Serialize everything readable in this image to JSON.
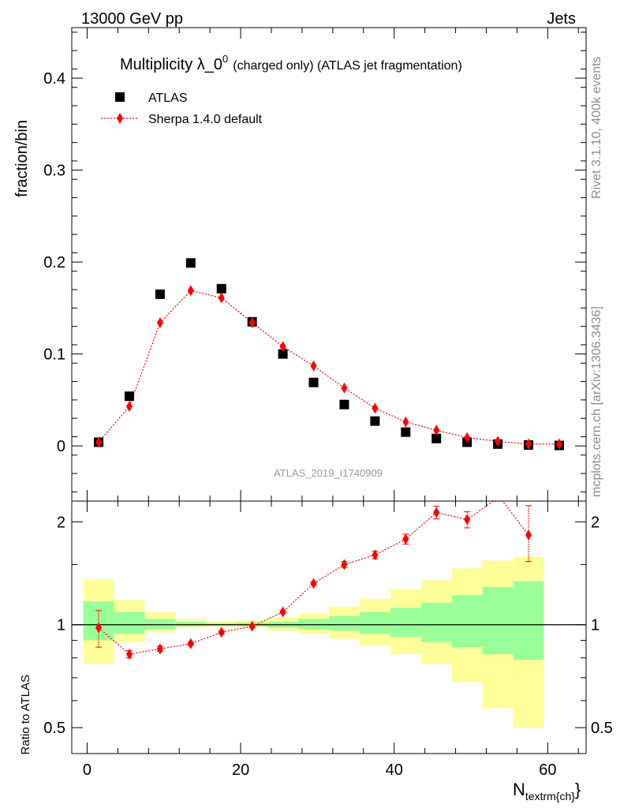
{
  "header": {
    "energy_label": "13000 GeV pp",
    "category_label": "Jets"
  },
  "side_text": {
    "rivet": "Rivet 3.1.10,  400k events",
    "mcplots": "mcplots.cern.ch [arXiv:1306.3436]"
  },
  "watermark": "ATLAS_2019_I1740909",
  "chart_data": [
    {
      "type": "scatter",
      "title": "Multiplicity λ_0",
      "title_sup": "0",
      "title_suffix": "(charged only) (ATLAS jet fragmentation)",
      "ylabel": "fraction/bin",
      "xlim": [
        -2,
        65
      ],
      "ylim": [
        -0.06,
        0.455
      ],
      "yticks": [
        0,
        0.1,
        0.2,
        0.3,
        0.4
      ],
      "ytick_labels": [
        "0",
        "0.1",
        "0.2",
        "0.3",
        "0.4"
      ],
      "legend": [
        "ATLAS",
        "Sherpa 1.4.0 default"
      ],
      "legend_position": "top-left",
      "series": [
        {
          "name": "ATLAS",
          "color": "#000000",
          "marker": "square",
          "x": [
            1.5,
            5.5,
            9.5,
            13.5,
            17.5,
            21.5,
            25.5,
            29.5,
            33.5,
            37.5,
            41.5,
            45.5,
            49.5,
            53.5,
            57.5,
            61.5
          ],
          "y": [
            0.004,
            0.054,
            0.165,
            0.199,
            0.171,
            0.135,
            0.1,
            0.069,
            0.045,
            0.027,
            0.015,
            0.008,
            0.004,
            0.002,
            0.001,
            0.0005
          ]
        },
        {
          "name": "Sherpa 1.4.0 default",
          "color": "#ff0000",
          "marker": "diamond",
          "x": [
            1.5,
            5.5,
            9.5,
            13.5,
            17.5,
            21.5,
            25.5,
            29.5,
            33.5,
            37.5,
            41.5,
            45.5,
            49.5,
            53.5,
            57.5,
            61.5
          ],
          "y": [
            0.004,
            0.043,
            0.134,
            0.169,
            0.161,
            0.134,
            0.108,
            0.087,
            0.063,
            0.041,
            0.026,
            0.017,
            0.009,
            0.005,
            0.002,
            0.002
          ]
        }
      ]
    },
    {
      "type": "scatter",
      "ylabel": "Ratio to ATLAS",
      "xlabel": "N",
      "xlabel_sub": "textrm{ch}",
      "xlim": [
        -2,
        65
      ],
      "ylim": [
        0.42,
        2.3
      ],
      "log_y": true,
      "xticks": [
        0,
        20,
        40,
        60
      ],
      "xtick_labels": [
        "0",
        "20",
        "40",
        "60"
      ],
      "yticks": [
        0.5,
        1,
        2
      ],
      "ytick_labels": [
        "0.5",
        "1",
        "2"
      ],
      "bands": {
        "x_edges": [
          -0.5,
          3.5,
          7.5,
          11.5,
          15.5,
          19.5,
          23.5,
          27.5,
          31.5,
          35.5,
          39.5,
          43.5,
          47.5,
          51.5,
          55.5,
          59.5
        ],
        "yellow_low": [
          0.77,
          0.89,
          0.95,
          0.98,
          0.985,
          0.98,
          0.96,
          0.94,
          0.91,
          0.87,
          0.82,
          0.77,
          0.68,
          0.57,
          0.5
        ],
        "yellow_high": [
          1.36,
          1.18,
          1.09,
          1.04,
          1.025,
          1.03,
          1.05,
          1.08,
          1.13,
          1.19,
          1.27,
          1.35,
          1.46,
          1.54,
          1.58
        ],
        "green_low": [
          0.9,
          0.94,
          0.97,
          0.99,
          0.993,
          0.99,
          0.98,
          0.97,
          0.96,
          0.94,
          0.92,
          0.89,
          0.86,
          0.82,
          0.79
        ],
        "green_high": [
          1.17,
          1.09,
          1.04,
          1.02,
          1.01,
          1.015,
          1.02,
          1.04,
          1.06,
          1.09,
          1.12,
          1.16,
          1.22,
          1.29,
          1.34
        ]
      },
      "series": [
        {
          "name": "Sherpa 1.4.0 default / ATLAS",
          "color": "#ff0000",
          "marker": "diamond",
          "x": [
            1.5,
            5.5,
            9.5,
            13.5,
            17.5,
            21.5,
            25.5,
            29.5,
            33.5,
            37.5,
            41.5,
            45.5,
            49.5,
            57.5
          ],
          "y": [
            0.98,
            0.82,
            0.85,
            0.88,
            0.95,
            0.99,
            1.09,
            1.32,
            1.5,
            1.6,
            1.78,
            2.13,
            2.03,
            1.83
          ],
          "err_low": [
            0.12,
            0.02,
            0.015,
            0.01,
            0.01,
            0.01,
            0.01,
            0.015,
            0.03,
            0.04,
            0.06,
            0.09,
            0.11,
            0.3
          ],
          "err_high": [
            0.12,
            0.02,
            0.015,
            0.01,
            0.01,
            0.01,
            0.01,
            0.015,
            0.03,
            0.04,
            0.06,
            0.09,
            0.11,
            0.4
          ]
        }
      ],
      "offscale_points": {
        "x": [
          53.5,
          61.5
        ],
        "note": "points above plotted range"
      }
    }
  ]
}
